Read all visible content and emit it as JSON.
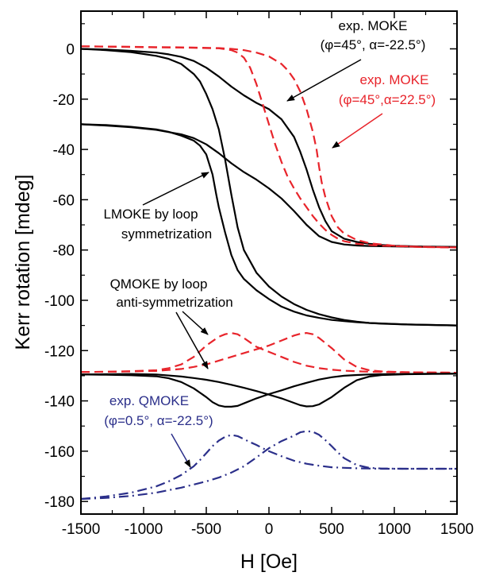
{
  "chart_data": {
    "type": "line",
    "title": "",
    "xlabel": "H [Oe]",
    "ylabel": "Kerr rotation [mdeg]",
    "xlim": [
      -1500,
      1500
    ],
    "ylim": [
      -185,
      15
    ],
    "xticks": [
      -1500,
      -1000,
      -500,
      0,
      500,
      1000,
      1500
    ],
    "xtick_labels": [
      "-1500",
      "-1000",
      "-500",
      "0",
      "500",
      "1000",
      "1500"
    ],
    "yticks": [
      0,
      -20,
      -40,
      -60,
      -80,
      -100,
      -120,
      -140,
      -160,
      -180
    ],
    "ytick_labels": [
      "0",
      "-20",
      "-40",
      "-60",
      "-80",
      "-100",
      "-120",
      "-140",
      "-160",
      "-180"
    ],
    "grid": false,
    "colors": {
      "black": "#000000",
      "red": "#e8242b",
      "blue": "#2b2f8a"
    },
    "series": [
      {
        "color": "#000000",
        "dash": "solid",
        "x": [
          -1500,
          -1300,
          -1100,
          -900,
          -800,
          -700,
          -600,
          -500,
          -400,
          -300,
          -200,
          -100,
          0,
          100,
          200,
          250,
          300,
          350,
          400,
          450,
          500,
          600,
          700,
          800,
          900,
          1000,
          1200,
          1500
        ],
        "y": [
          0,
          -0.3,
          -0.8,
          -1.5,
          -2.2,
          -3.2,
          -4.8,
          -7.5,
          -11,
          -15,
          -18.5,
          -21.5,
          -24,
          -28,
          -35,
          -41,
          -48,
          -56,
          -63,
          -68.5,
          -72.5,
          -75.5,
          -76.8,
          -77.5,
          -78,
          -78.3,
          -78.6,
          -78.8
        ]
      },
      {
        "color": "#000000",
        "dash": "solid",
        "x": [
          -1500,
          -1300,
          -1100,
          -900,
          -800,
          -700,
          -600,
          -550,
          -500,
          -450,
          -400,
          -350,
          -300,
          -250,
          -200,
          -100,
          0,
          100,
          200,
          300,
          400,
          500,
          600,
          700,
          800,
          900,
          1100,
          1300,
          1500
        ],
        "y": [
          0,
          -0.5,
          -1.3,
          -2.8,
          -4,
          -6,
          -10,
          -13,
          -18,
          -24,
          -32,
          -44,
          -58,
          -71,
          -80,
          -89,
          -94.5,
          -98.5,
          -101.5,
          -103.8,
          -105.5,
          -106.8,
          -107.8,
          -108.5,
          -109,
          -109.3,
          -109.6,
          -109.8,
          -110
        ]
      },
      {
        "color": "#000000",
        "dash": "solid",
        "x": [
          -1500,
          -1300,
          -1100,
          -900,
          -700,
          -600,
          -500,
          -400,
          -300,
          -200,
          -100,
          0,
          100,
          200,
          300,
          400,
          500,
          600,
          700,
          800,
          900,
          1000,
          1200,
          1500
        ],
        "y": [
          -30,
          -30.5,
          -31.2,
          -32.2,
          -34,
          -35.5,
          -38,
          -41.5,
          -45.5,
          -49,
          -52,
          -55.5,
          -59.5,
          -64.5,
          -70,
          -74.5,
          -76.8,
          -77.8,
          -78.2,
          -78.4,
          -78.5,
          -78.6,
          -78.7,
          -78.8
        ]
      },
      {
        "color": "#000000",
        "dash": "solid",
        "x": [
          -1500,
          -1300,
          -1100,
          -900,
          -800,
          -700,
          -600,
          -550,
          -500,
          -450,
          -420,
          -400,
          -350,
          -300,
          -250,
          -200,
          -100,
          0,
          100,
          200,
          300,
          400,
          500,
          600,
          700,
          800,
          900,
          1000,
          1100,
          1200,
          1300,
          1500
        ],
        "y": [
          -30,
          -30.3,
          -31,
          -32,
          -33,
          -34.5,
          -36.5,
          -38.5,
          -42,
          -50,
          -58,
          -63,
          -73,
          -82,
          -88,
          -91.5,
          -96,
          -99.5,
          -102.5,
          -104.5,
          -106,
          -107,
          -107.8,
          -108.3,
          -108.7,
          -109,
          -109.2,
          -109.4,
          -109.6,
          -109.7,
          -109.8,
          -110
        ]
      },
      {
        "color": "#e8242b",
        "dash": "dashed",
        "x": [
          -1500,
          -1200,
          -900,
          -700,
          -500,
          -400,
          -300,
          -250,
          -200,
          -150,
          -100,
          -50,
          0,
          50,
          100,
          150,
          200,
          250,
          300,
          350,
          400,
          450,
          500,
          550,
          600,
          700,
          800,
          900,
          1100,
          1300,
          1500
        ],
        "y": [
          1,
          0.8,
          0.6,
          0.5,
          0.3,
          0.2,
          -0.5,
          -1.5,
          -3.5,
          -7.5,
          -14,
          -22,
          -30,
          -38,
          -45,
          -51,
          -55.5,
          -59.5,
          -63,
          -66.5,
          -69.5,
          -72,
          -74,
          -75.5,
          -76.5,
          -77.5,
          -78,
          -78.3,
          -78.6,
          -78.8,
          -79
        ]
      },
      {
        "color": "#e8242b",
        "dash": "dashed",
        "x": [
          -1500,
          -1300,
          -1100,
          -900,
          -700,
          -600,
          -500,
          -400,
          -300,
          -200,
          -100,
          0,
          100,
          150,
          200,
          250,
          300,
          350,
          380,
          400,
          420,
          450,
          500,
          550,
          600,
          700,
          800,
          1000,
          1200,
          1500
        ],
        "y": [
          1,
          0.9,
          0.8,
          0.7,
          0.6,
          0.5,
          0.4,
          0.3,
          0,
          -0.5,
          -1.5,
          -3,
          -6,
          -8.5,
          -12,
          -17,
          -24,
          -33,
          -40,
          -47,
          -53,
          -59,
          -66.5,
          -71,
          -73.5,
          -76,
          -77.3,
          -78.3,
          -78.8,
          -79
        ]
      },
      {
        "color": "#e8242b",
        "dash": "dashed",
        "x": [
          -1500,
          -1300,
          -1100,
          -900,
          -800,
          -700,
          -600,
          -500,
          -400,
          -350,
          -300,
          -250,
          -200,
          -100,
          0,
          100,
          200,
          300,
          400,
          500,
          600,
          700,
          800,
          900,
          1100,
          1300,
          1500
        ],
        "y": [
          -128.5,
          -128.4,
          -128.2,
          -127.8,
          -127,
          -125.5,
          -122.5,
          -118,
          -114.5,
          -113.5,
          -113,
          -113.5,
          -115,
          -118.5,
          -120.5,
          -122.5,
          -124.5,
          -126,
          -127,
          -127.6,
          -128,
          -128.2,
          -128.4,
          -128.5,
          -128.6,
          -128.7,
          -128.8
        ]
      },
      {
        "color": "#e8242b",
        "dash": "dashed",
        "x": [
          -1500,
          -1300,
          -1100,
          -900,
          -700,
          -600,
          -500,
          -400,
          -300,
          -200,
          -100,
          0,
          100,
          200,
          250,
          300,
          350,
          400,
          500,
          600,
          700,
          800,
          900,
          1100,
          1300,
          1500
        ],
        "y": [
          -128.5,
          -128.4,
          -128.3,
          -128.1,
          -127.3,
          -126.5,
          -125.5,
          -124,
          -122.5,
          -121,
          -119.5,
          -118,
          -116,
          -114,
          -113.3,
          -113,
          -113.5,
          -115,
          -119,
          -123.5,
          -126.5,
          -127.8,
          -128.3,
          -128.6,
          -128.7,
          -128.8
        ]
      },
      {
        "color": "#000000",
        "dash": "solid",
        "x": [
          -1500,
          -1300,
          -1100,
          -900,
          -800,
          -700,
          -600,
          -500,
          -450,
          -400,
          -350,
          -300,
          -250,
          -200,
          -100,
          0,
          100,
          200,
          300,
          400,
          500,
          600,
          700,
          800,
          900,
          1100,
          1300,
          1500
        ],
        "y": [
          -129.5,
          -129.6,
          -129.8,
          -130.2,
          -131,
          -132.5,
          -135,
          -138.5,
          -140.5,
          -141.8,
          -142.3,
          -142.3,
          -142,
          -141,
          -139,
          -137.3,
          -135.8,
          -134.2,
          -132.8,
          -131.5,
          -130.6,
          -130,
          -129.7,
          -129.5,
          -129.4,
          -129.3,
          -129.2,
          -129.2
        ]
      },
      {
        "color": "#000000",
        "dash": "solid",
        "x": [
          -1500,
          -1300,
          -1100,
          -900,
          -700,
          -600,
          -500,
          -400,
          -300,
          -200,
          -100,
          0,
          100,
          200,
          250,
          300,
          350,
          400,
          500,
          600,
          700,
          800,
          900,
          1100,
          1300,
          1500
        ],
        "y": [
          -129.5,
          -129.4,
          -129.3,
          -129.5,
          -130.3,
          -130.9,
          -131.6,
          -132.5,
          -133.6,
          -134.8,
          -136.1,
          -137.5,
          -139,
          -140.8,
          -141.7,
          -142.2,
          -142.1,
          -141.4,
          -138.5,
          -134.8,
          -131.8,
          -130.3,
          -129.7,
          -129.4,
          -129.3,
          -129.2
        ]
      },
      {
        "color": "#2b2f8a",
        "dash": "dashdot",
        "x": [
          -1500,
          -1300,
          -1100,
          -900,
          -800,
          -700,
          -600,
          -550,
          -500,
          -450,
          -400,
          -350,
          -300,
          -250,
          -200,
          -150,
          -100,
          -50,
          0,
          100,
          200,
          300,
          400,
          500,
          600,
          700,
          800,
          900,
          1100,
          1300,
          1500
        ],
        "y": [
          -179,
          -178,
          -176.5,
          -174,
          -172,
          -169.5,
          -166,
          -163.5,
          -160.8,
          -158,
          -155.8,
          -154.3,
          -153.5,
          -154,
          -155.2,
          -156.4,
          -157.5,
          -158.8,
          -160,
          -162,
          -163.8,
          -165,
          -165.8,
          -166.4,
          -166.6,
          -166.8,
          -166.9,
          -167,
          -167,
          -167,
          -167
        ]
      },
      {
        "color": "#2b2f8a",
        "dash": "dashdot",
        "x": [
          -1500,
          -1300,
          -1100,
          -900,
          -700,
          -500,
          -400,
          -300,
          -200,
          -100,
          0,
          100,
          200,
          250,
          300,
          350,
          400,
          450,
          500,
          550,
          600,
          700,
          800,
          900,
          1100,
          1300,
          1500
        ],
        "y": [
          -179,
          -178.6,
          -177.8,
          -176.5,
          -174.5,
          -172,
          -170.5,
          -168.5,
          -166,
          -162.5,
          -158.8,
          -156,
          -153.8,
          -152.5,
          -152,
          -152.3,
          -153.5,
          -155.6,
          -158,
          -160.5,
          -162.8,
          -165.5,
          -166.6,
          -166.9,
          -167,
          -167,
          -167
        ]
      }
    ]
  },
  "annotations": {
    "exp_moke_black_line1": "exp. MOKE",
    "exp_moke_black_line2": "(φ=45°, α=-22.5°)",
    "exp_moke_red_line1": "exp. MOKE",
    "exp_moke_red_line2": "(φ=45°,α=22.5°)",
    "lmoke_line1": "LMOKE by loop",
    "lmoke_line2": "symmetrization",
    "qmoke_line1": "QMOKE by loop",
    "qmoke_line2": "anti-symmetrization",
    "exp_qmoke_line1": "exp. QMOKE",
    "exp_qmoke_line2": "(φ=0.5°, α=-22.5°)"
  }
}
